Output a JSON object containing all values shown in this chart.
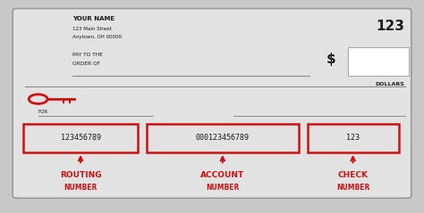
{
  "bg_color": "#c8c8c8",
  "check_bg": "#e2e2e2",
  "white": "#ffffff",
  "red": "#cc1111",
  "dark_text": "#1a1a1a",
  "check_number": "123",
  "name_line1": "YOUR NAME",
  "name_line2": "123 Main Street",
  "name_line3": "Anytown, OH 00000",
  "pay_to_line1": "PAY TO THE",
  "pay_to_line2": "ORDER OF",
  "dollars_label": "DOLLARS",
  "for_label": "FOR",
  "routing_number": "123456789",
  "account_number": "000123456789",
  "check_num_bottom": "123",
  "routing_label1": "ROUTING",
  "routing_label2": "NUMBER",
  "account_label1": "ACCOUNT",
  "account_label2": "NUMBER",
  "check_label1": "CHECK",
  "check_label2": "NUMBER",
  "dollar_sign": "$"
}
